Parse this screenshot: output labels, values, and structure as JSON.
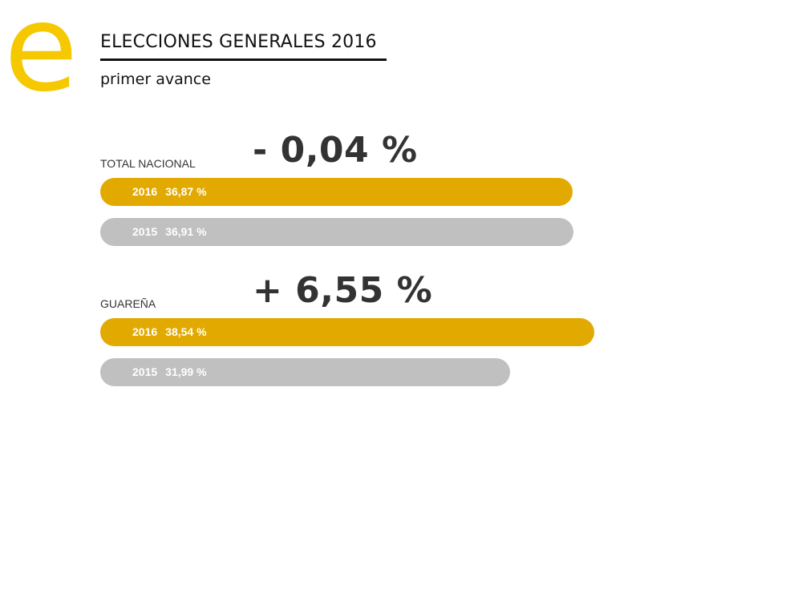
{
  "header": {
    "logo_letter": "e",
    "title": "ELECCIONES GENERALES 2016",
    "subtitle": "primer avance"
  },
  "colors": {
    "accent": "#f6c800",
    "bar_2016": "#e2aa00",
    "bar_2015": "#c0c0c0",
    "text_dark": "#333333"
  },
  "chart_data": {
    "type": "bar",
    "orientation": "horizontal",
    "groups": [
      {
        "label": "TOTAL NACIONAL",
        "difference": "- 0,04 %",
        "bars": [
          {
            "year": "2016",
            "value": 36.87,
            "value_label": "36,87 %"
          },
          {
            "year": "2015",
            "value": 36.91,
            "value_label": "36,91 %"
          }
        ]
      },
      {
        "label": "GUAREÑA",
        "difference": "+ 6,55 %",
        "bars": [
          {
            "year": "2016",
            "value": 38.54,
            "value_label": "38,54 %"
          },
          {
            "year": "2015",
            "value": 31.99,
            "value_label": "31,99 %"
          }
        ]
      }
    ]
  }
}
